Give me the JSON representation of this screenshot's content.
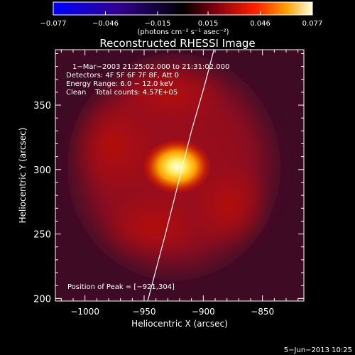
{
  "colorbar": {
    "ticks": [
      {
        "value": -0.077,
        "label": "−0.077"
      },
      {
        "value": -0.046,
        "label": "−0.046"
      },
      {
        "value": -0.015,
        "label": "−0.015"
      },
      {
        "value": 0.015,
        "label": "0.015"
      },
      {
        "value": 0.046,
        "label": "0.046"
      },
      {
        "value": 0.077,
        "label": "0.077"
      }
    ],
    "unit_label": "(photons cm⁻² s⁻¹ asec⁻²)",
    "colors": [
      "#0000ff",
      "#300090",
      "#000000",
      "#7a0010",
      "#ff2000",
      "#ffa000",
      "#ffffe0"
    ]
  },
  "chart_data": {
    "type": "heatmap",
    "title": "Reconstructed RHESSI Image",
    "xlabel": "Heliocentric X (arcsec)",
    "ylabel": "Heliocentric Y (arcsec)",
    "xlim": [
      -1025,
      -815
    ],
    "ylim": [
      198,
      393
    ],
    "xticks": [
      {
        "value": -1000,
        "label": "−1000"
      },
      {
        "value": -950,
        "label": "−950"
      },
      {
        "value": -900,
        "label": "−900"
      },
      {
        "value": -850,
        "label": "−850"
      }
    ],
    "yticks": [
      {
        "value": 200,
        "label": "200"
      },
      {
        "value": 250,
        "label": "250"
      },
      {
        "value": 300,
        "label": "300"
      },
      {
        "value": 350,
        "label": "350"
      }
    ],
    "annotations": [
      "1−Mar−2003 21:25:02.000 to 21:31:02.000",
      "Detectors: 4F 5F 6F 7F 8F, Att 0",
      "Energy Range: 6.0 − 12.0 keV",
      "Clean    Total counts: 4.57E+05"
    ],
    "peak_label": "Position of Peak = [−921,304]",
    "peak": {
      "x": -921,
      "y": 304
    },
    "limb": [
      [
        -947,
        198
      ],
      [
        -932,
        250
      ],
      [
        -921,
        290
      ],
      [
        -910,
        330
      ],
      [
        -899,
        365
      ],
      [
        -891,
        393
      ]
    ]
  },
  "date_stamp": "5−Jun−2013 10:25"
}
